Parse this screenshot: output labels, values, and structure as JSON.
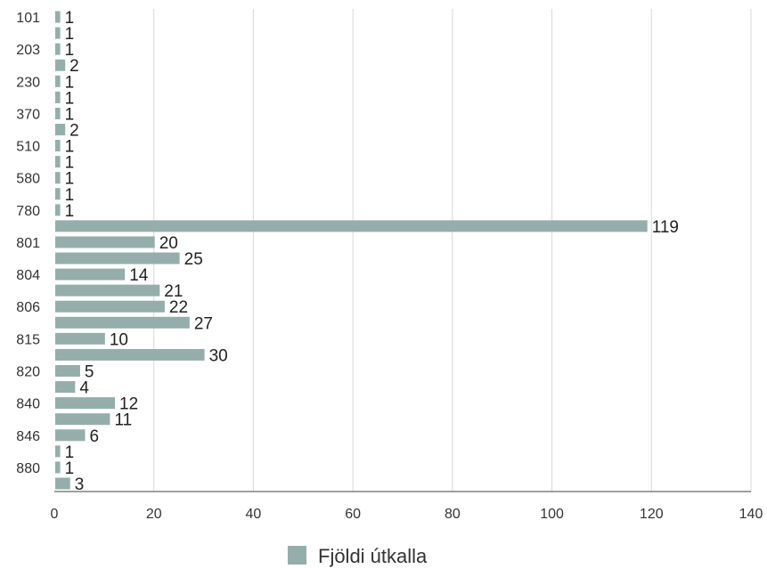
{
  "chart_data": {
    "type": "bar",
    "orientation": "horizontal",
    "categories": [
      "101",
      "",
      "203",
      "",
      "230",
      "",
      "370",
      "",
      "510",
      "",
      "580",
      "",
      "780",
      "",
      "801",
      "",
      "804",
      "",
      "806",
      "",
      "815",
      "",
      "820",
      "",
      "840",
      "",
      "846",
      "",
      "880",
      ""
    ],
    "series": [
      {
        "name": "Fjöldi útkalla",
        "values": [
          1,
          1,
          1,
          2,
          1,
          1,
          1,
          2,
          1,
          1,
          1,
          1,
          1,
          119,
          20,
          25,
          14,
          21,
          22,
          27,
          10,
          30,
          5,
          4,
          12,
          11,
          6,
          1,
          1,
          3
        ],
        "color": "#95aeab"
      }
    ],
    "xlim": [
      0,
      140
    ],
    "xticks": [
      0,
      20,
      40,
      60,
      80,
      100,
      120,
      140
    ],
    "grid": "vertical",
    "legend_position": "bottom",
    "title": "",
    "xlabel": "",
    "ylabel": ""
  },
  "colors": {
    "bar": "#95aeab",
    "grid": "#d9d9d9",
    "axis": "#404040"
  }
}
